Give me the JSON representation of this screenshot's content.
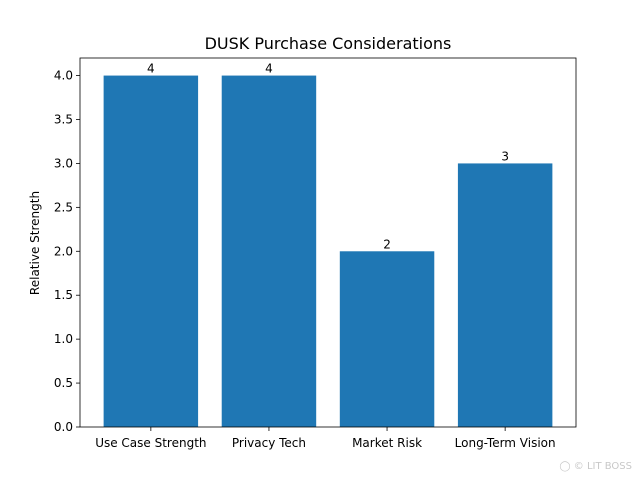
{
  "chart_data": {
    "type": "bar",
    "title": "DUSK Purchase Considerations",
    "xlabel": "",
    "ylabel": "Relative Strength",
    "categories": [
      "Use Case Strength",
      "Privacy Tech",
      "Market Risk",
      "Long-Term Vision"
    ],
    "values": [
      4,
      4,
      2,
      3
    ],
    "data_labels": [
      "4",
      "4",
      "2",
      "3"
    ],
    "ylim": [
      0,
      4.2
    ],
    "yticks": [
      "0.0",
      "0.5",
      "1.0",
      "1.5",
      "2.0",
      "2.5",
      "3.0",
      "3.5",
      "4.0"
    ],
    "grid": false,
    "bar_color": "#1f77b4"
  },
  "watermark": "LIT BOSS"
}
